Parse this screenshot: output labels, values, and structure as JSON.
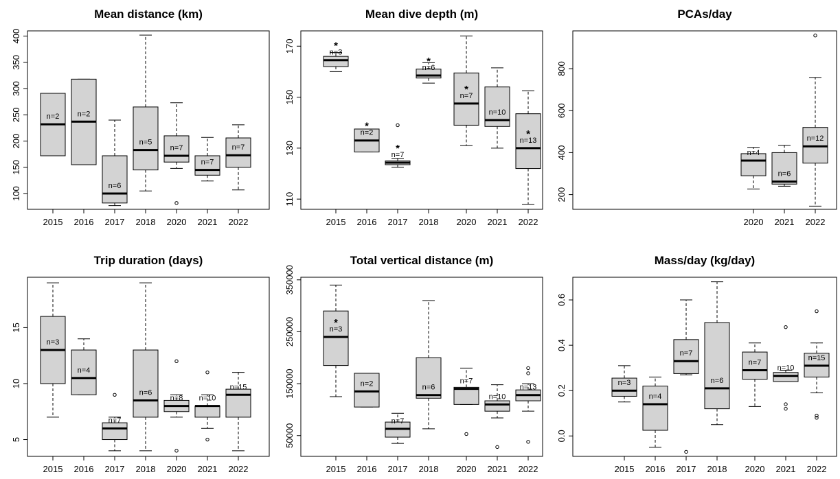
{
  "chart_data": [
    {
      "type": "box",
      "title": "Mean distance (km)",
      "categories": [
        "2015",
        "2016",
        "2017",
        "2018",
        "2020",
        "2021",
        "2022"
      ],
      "ylim": [
        70,
        410
      ],
      "yticks": [
        100,
        150,
        200,
        250,
        300,
        350,
        400
      ],
      "boxes": [
        {
          "year": "2015",
          "min": 172,
          "q1": 172,
          "median": 232,
          "q3": 291,
          "max": 291,
          "outliers": [],
          "n_label": "n=2",
          "star": false
        },
        {
          "year": "2016",
          "min": 155,
          "q1": 155,
          "median": 237,
          "q3": 318,
          "max": 318,
          "outliers": [],
          "n_label": "n=2",
          "star": false
        },
        {
          "year": "2017",
          "min": 77,
          "q1": 82,
          "median": 100,
          "q3": 172,
          "max": 240,
          "outliers": [],
          "n_label": "n=6",
          "star": false
        },
        {
          "year": "2018",
          "min": 105,
          "q1": 145,
          "median": 183,
          "q3": 265,
          "max": 402,
          "outliers": [],
          "n_label": "n=5",
          "star": false
        },
        {
          "year": "2020",
          "min": 148,
          "q1": 160,
          "median": 172,
          "q3": 210,
          "max": 273,
          "outliers": [
            82
          ],
          "n_label": "n=7",
          "star": false
        },
        {
          "year": "2021",
          "min": 124,
          "q1": 135,
          "median": 145,
          "q3": 172,
          "max": 207,
          "outliers": [],
          "n_label": "n=7",
          "star": false
        },
        {
          "year": "2022",
          "min": 107,
          "q1": 150,
          "median": 173,
          "q3": 206,
          "max": 231,
          "outliers": [],
          "n_label": "n=7",
          "star": false
        }
      ]
    },
    {
      "type": "box",
      "title": "Mean dive depth (m)",
      "categories": [
        "2015",
        "2016",
        "2017",
        "2018",
        "2020",
        "2021",
        "2022"
      ],
      "ylim": [
        106,
        176
      ],
      "yticks": [
        110,
        130,
        150,
        170
      ],
      "boxes": [
        {
          "year": "2015",
          "min": 160,
          "q1": 162,
          "median": 164.5,
          "q3": 166,
          "max": 167.5,
          "outliers": [],
          "n_label": "n=3",
          "star": true
        },
        {
          "year": "2016",
          "min": 128.5,
          "q1": 128.5,
          "median": 133,
          "q3": 137.5,
          "max": 137.5,
          "outliers": [],
          "n_label": "n=2",
          "star": true
        },
        {
          "year": "2017",
          "min": 122.5,
          "q1": 123.5,
          "median": 124.3,
          "q3": 125,
          "max": 126,
          "outliers": [
            139
          ],
          "n_label": "n=7",
          "star": true
        },
        {
          "year": "2018",
          "min": 155.5,
          "q1": 157.5,
          "median": 158.5,
          "q3": 161,
          "max": 163.5,
          "outliers": [],
          "n_label": "n=6",
          "star": true
        },
        {
          "year": "2020",
          "min": 131,
          "q1": 139,
          "median": 147.5,
          "q3": 159.5,
          "max": 174,
          "outliers": [],
          "n_label": "n=7",
          "star": true
        },
        {
          "year": "2021",
          "min": 130,
          "q1": 138.5,
          "median": 141,
          "q3": 154,
          "max": 161.5,
          "outliers": [],
          "n_label": "n=10",
          "star": false
        },
        {
          "year": "2022",
          "min": 108,
          "q1": 122,
          "median": 130,
          "q3": 143.5,
          "max": 152.5,
          "outliers": [],
          "n_label": "n=13",
          "star": true
        }
      ]
    },
    {
      "type": "box",
      "title": "PCAs/day",
      "categories": [
        "2020",
        "2021",
        "2022"
      ],
      "ylim": [
        130,
        980
      ],
      "yticks": [
        200,
        400,
        600,
        800
      ],
      "boxes": [
        {
          "year": "2020",
          "min": 227,
          "q1": 290,
          "median": 362,
          "q3": 395,
          "max": 425,
          "outliers": [],
          "n_label": "n=4",
          "star": false
        },
        {
          "year": "2021",
          "min": 240,
          "q1": 250,
          "median": 262,
          "q3": 400,
          "max": 435,
          "outliers": [],
          "n_label": "n=6",
          "star": false
        },
        {
          "year": "2022",
          "min": 145,
          "q1": 350,
          "median": 430,
          "q3": 520,
          "max": 758,
          "outliers": [
            958
          ],
          "n_label": "n=12",
          "star": false
        }
      ]
    },
    {
      "type": "box",
      "title": "Trip duration (days)",
      "categories": [
        "2015",
        "2016",
        "2017",
        "2018",
        "2020",
        "2021",
        "2022"
      ],
      "ylim": [
        3.5,
        19.5
      ],
      "yticks": [
        5,
        10,
        15
      ],
      "boxes": [
        {
          "year": "2015",
          "min": 7,
          "q1": 10,
          "median": 13,
          "q3": 16,
          "max": 19,
          "outliers": [],
          "n_label": "n=3",
          "star": false
        },
        {
          "year": "2016",
          "min": 9,
          "q1": 9,
          "median": 10.5,
          "q3": 13,
          "max": 14,
          "outliers": [],
          "n_label": "n=4",
          "star": false
        },
        {
          "year": "2017",
          "min": 4,
          "q1": 5,
          "median": 6,
          "q3": 6.5,
          "max": 7,
          "outliers": [
            9
          ],
          "n_label": "n=7",
          "star": false
        },
        {
          "year": "2018",
          "min": 4,
          "q1": 7,
          "median": 8.5,
          "q3": 13,
          "max": 19,
          "outliers": [],
          "n_label": "n=6",
          "star": false
        },
        {
          "year": "2020",
          "min": 7,
          "q1": 7.5,
          "median": 8,
          "q3": 8.5,
          "max": 9,
          "outliers": [
            12,
            4
          ],
          "n_label": "n=8",
          "star": false
        },
        {
          "year": "2021",
          "min": 6,
          "q1": 7,
          "median": 8,
          "q3": 8,
          "max": 9,
          "outliers": [
            11,
            5
          ],
          "n_label": "n=10",
          "star": false
        },
        {
          "year": "2022",
          "min": 4,
          "q1": 7,
          "median": 9,
          "q3": 9.5,
          "max": 11,
          "outliers": [],
          "n_label": "n=15",
          "star": false
        }
      ]
    },
    {
      "type": "box",
      "title": "Total vertical distance (m)",
      "categories": [
        "2015",
        "2016",
        "2017",
        "2018",
        "2020",
        "2021",
        "2022"
      ],
      "ylim": [
        10000,
        355000
      ],
      "yticks": [
        50000,
        150000,
        250000,
        350000
      ],
      "boxes": [
        {
          "year": "2015",
          "min": 125000,
          "q1": 185000,
          "median": 240000,
          "q3": 290000,
          "max": 340000,
          "outliers": [],
          "n_label": "n=3",
          "star": true
        },
        {
          "year": "2016",
          "min": 105000,
          "q1": 105000,
          "median": 135000,
          "q3": 170000,
          "max": 170000,
          "outliers": [],
          "n_label": "n=2",
          "star": false
        },
        {
          "year": "2017",
          "min": 35000,
          "q1": 47000,
          "median": 63000,
          "q3": 76000,
          "max": 93000,
          "outliers": [],
          "n_label": "n=7",
          "star": false
        },
        {
          "year": "2018",
          "min": 63000,
          "q1": 122000,
          "median": 128000,
          "q3": 200000,
          "max": 310000,
          "outliers": [],
          "n_label": "n=6",
          "star": false
        },
        {
          "year": "2020",
          "min": 110000,
          "q1": 110000,
          "median": 140000,
          "q3": 143000,
          "max": 180000,
          "outliers": [
            53000
          ],
          "n_label": "n=7",
          "star": false
        },
        {
          "year": "2021",
          "min": 84000,
          "q1": 97000,
          "median": 110000,
          "q3": 117000,
          "max": 148000,
          "outliers": [
            28000
          ],
          "n_label": "n=10",
          "star": false
        },
        {
          "year": "2022",
          "min": 97000,
          "q1": 117000,
          "median": 128000,
          "q3": 138000,
          "max": 150000,
          "outliers": [
            170000,
            180000,
            38000
          ],
          "n_label": "n=13",
          "star": false
        }
      ]
    },
    {
      "type": "box",
      "title": "Mass/day (kg/day)",
      "categories": [
        "2015",
        "2016",
        "2017",
        "2018",
        "2020",
        "2021",
        "2022"
      ],
      "ylim": [
        -0.09,
        0.7
      ],
      "yticks": [
        0.0,
        0.2,
        0.4,
        0.6
      ],
      "ytick_labels": [
        "0.0",
        "0.2",
        "0.4",
        "0.6"
      ],
      "boxes": [
        {
          "year": "2015",
          "min": 0.15,
          "q1": 0.175,
          "median": 0.2,
          "q3": 0.255,
          "max": 0.31,
          "outliers": [],
          "n_label": "n=3",
          "star": false
        },
        {
          "year": "2016",
          "min": -0.05,
          "q1": 0.025,
          "median": 0.14,
          "q3": 0.22,
          "max": 0.26,
          "outliers": [],
          "n_label": "n=4",
          "star": false
        },
        {
          "year": "2017",
          "min": 0.27,
          "q1": 0.275,
          "median": 0.33,
          "q3": 0.425,
          "max": 0.6,
          "outliers": [
            -0.07
          ],
          "n_label": "n=7",
          "star": false
        },
        {
          "year": "2018",
          "min": 0.05,
          "q1": 0.12,
          "median": 0.21,
          "q3": 0.5,
          "max": 0.68,
          "outliers": [],
          "n_label": "n=6",
          "star": false
        },
        {
          "year": "2020",
          "min": 0.13,
          "q1": 0.25,
          "median": 0.29,
          "q3": 0.37,
          "max": 0.41,
          "outliers": [],
          "n_label": "n=7",
          "star": false
        },
        {
          "year": "2021",
          "min": 0.24,
          "q1": 0.24,
          "median": 0.265,
          "q3": 0.28,
          "max": 0.29,
          "outliers": [
            0.48,
            0.14,
            0.12
          ],
          "n_label": "n=10",
          "star": false
        },
        {
          "year": "2022",
          "min": 0.19,
          "q1": 0.26,
          "median": 0.31,
          "q3": 0.365,
          "max": 0.41,
          "outliers": [
            0.55,
            0.09,
            0.08
          ],
          "n_label": "n=15",
          "star": false
        }
      ]
    }
  ],
  "style": {
    "box_fill": "#d3d3d3",
    "line_color": "#000000"
  }
}
